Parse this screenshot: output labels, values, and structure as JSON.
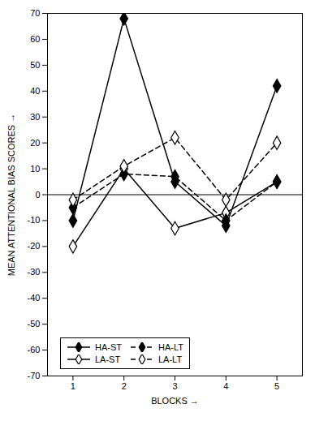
{
  "chart_data": {
    "type": "line",
    "x": [
      1,
      2,
      3,
      4,
      5
    ],
    "series": [
      {
        "name": "HA-ST",
        "color": "#000000",
        "line_style": "solid",
        "marker": "diamond",
        "values": [
          -10,
          68,
          5,
          -12,
          42
        ]
      },
      {
        "name": "LA-ST",
        "color": "#000000",
        "line_style": "solid",
        "marker": "diamond_open",
        "values": [
          -20,
          10,
          -13,
          -7,
          5
        ]
      },
      {
        "name": "HA-LT",
        "color": "#000000",
        "line_style": "dashed",
        "marker": "diamond",
        "values": [
          -5,
          8,
          7,
          -10,
          5
        ]
      },
      {
        "name": "LA-LT",
        "color": "#000000",
        "line_style": "dashed",
        "marker": "diamond_open",
        "values": [
          -2,
          11,
          22,
          -2,
          20
        ]
      }
    ],
    "hlines": [
      0
    ],
    "xlim": [
      0.5,
      5.5
    ],
    "xticks": [
      1,
      2,
      3,
      4,
      5
    ],
    "ylim": [
      -70,
      70
    ],
    "yticks": [
      -70,
      -60,
      -50,
      -40,
      -30,
      -20,
      -10,
      0,
      10,
      20,
      30,
      40,
      50,
      60,
      70
    ],
    "xlabel": "BLOCKS",
    "ylabel": "MEAN ATTENTIONAL BIAS SCORES",
    "grid": false,
    "legend": "lower left"
  }
}
